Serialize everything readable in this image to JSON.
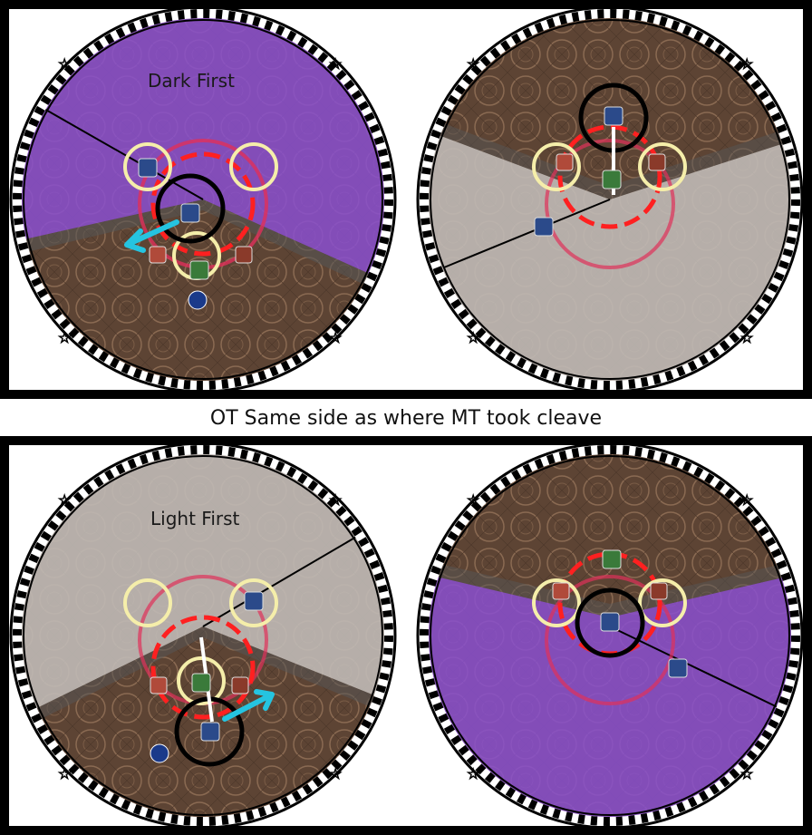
{
  "caption": "OT Same side as where MT took cleave",
  "top_panel": {
    "left_arena": {
      "label": "Dark First",
      "cleave_color": "#8a4fd0"
    },
    "right_arena": {
      "label": "",
      "cleave_color": "#c0bab6"
    }
  },
  "bottom_panel": {
    "left_arena": {
      "label": "Light First",
      "cleave_color": "#c0bab6"
    },
    "right_arena": {
      "label": "",
      "cleave_color": "#8a4fd0"
    }
  },
  "colors": {
    "arena_floor": "#6b5040",
    "dark_aoe": "#8a4fd0",
    "light_aoe": "#c0bab6",
    "arrow": "#25c4e0",
    "tower_ring": "#f5eeaa",
    "border_white": "#ffffff",
    "border_black": "#000000"
  },
  "icons": [
    "tank-icon",
    "healer-icon",
    "melee-dps-icon",
    "ranged-dps-icon",
    "caster-dps-icon",
    "boss-marker-icon",
    "star-waymark-icon"
  ]
}
